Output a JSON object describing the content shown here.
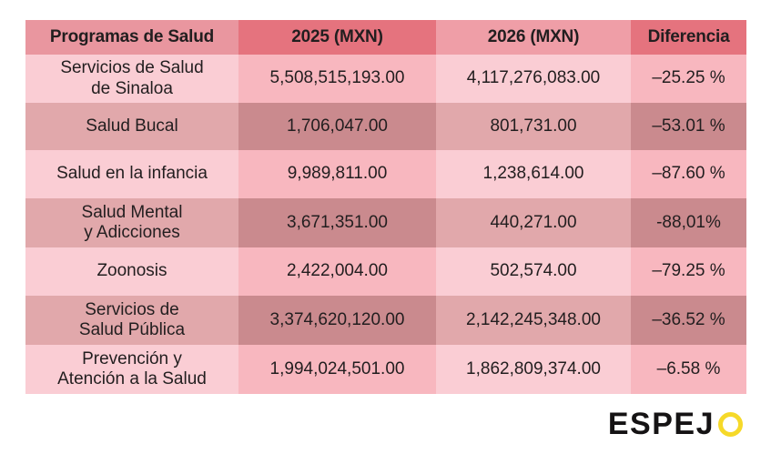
{
  "table": {
    "headers": [
      "Programas de Salud",
      "2025 (MXN)",
      "2026 (MXN)",
      "Diferencia"
    ],
    "rows": [
      {
        "program": "Servicios de Salud\nde Sinaloa",
        "y2025": "5,508,515,193.00",
        "y2026": "4,117,276,083.00",
        "diff": "–25.25 %"
      },
      {
        "program": "Salud Bucal",
        "y2025": "1,706,047.00",
        "y2026": "801,731.00",
        "diff": "–53.01 %"
      },
      {
        "program": "Salud en la infancia",
        "y2025": "9,989,811.00",
        "y2026": "1,238,614.00",
        "diff": "–87.60 %"
      },
      {
        "program": "Salud Mental\ny Adicciones",
        "y2025": "3,671,351.00",
        "y2026": "440,271.00",
        "diff": "-88,01%"
      },
      {
        "program": "Zoonosis",
        "y2025": "2,422,004.00",
        "y2026": "502,574.00",
        "diff": "–79.25 %"
      },
      {
        "program": "Servicios de\nSalud Pública",
        "y2025": "3,374,620,120.00",
        "y2026": "2,142,245,348.00",
        "diff": "–36.52 %"
      },
      {
        "program": "Prevención y\nAtención a la Salud",
        "y2025": "1,994,024,501.00",
        "y2026": "1,862,809,374.00",
        "diff": "–6.58 %"
      }
    ]
  },
  "logo": {
    "wordmark": "ESPEJ",
    "o": "O"
  },
  "colors": {
    "header_accent": "#e5737e",
    "header_soft_col1": "#e9969f",
    "header_soft_col3": "#ef9ea7",
    "row_light_a": "#facdd4",
    "row_light_b": "#f8b7bf",
    "row_dark_a": "#e1a8ab",
    "row_dark_b": "#ca8a8e",
    "logo_yellow": "#f6d929",
    "text": "#221e1f"
  },
  "chart_data": {
    "type": "table",
    "title": "",
    "columns": [
      "Programas de Salud",
      "2025 (MXN)",
      "2026 (MXN)",
      "Diferencia"
    ],
    "rows": [
      [
        "Servicios de Salud de Sinaloa",
        5508515193.0,
        4117276083.0,
        -25.25
      ],
      [
        "Salud Bucal",
        1706047.0,
        801731.0,
        -53.01
      ],
      [
        "Salud en la infancia",
        9989811.0,
        1238614.0,
        -87.6
      ],
      [
        "Salud Mental y Adicciones",
        3671351.0,
        440271.0,
        -88.01
      ],
      [
        "Zoonosis",
        2422004.0,
        502574.0,
        -79.25
      ],
      [
        "Servicios de Salud Pública",
        3374620120.0,
        2142245348.0,
        -36.52
      ],
      [
        "Prevención y Atención a la Salud",
        1994024501.0,
        1862809374.0,
        -6.58
      ]
    ]
  }
}
